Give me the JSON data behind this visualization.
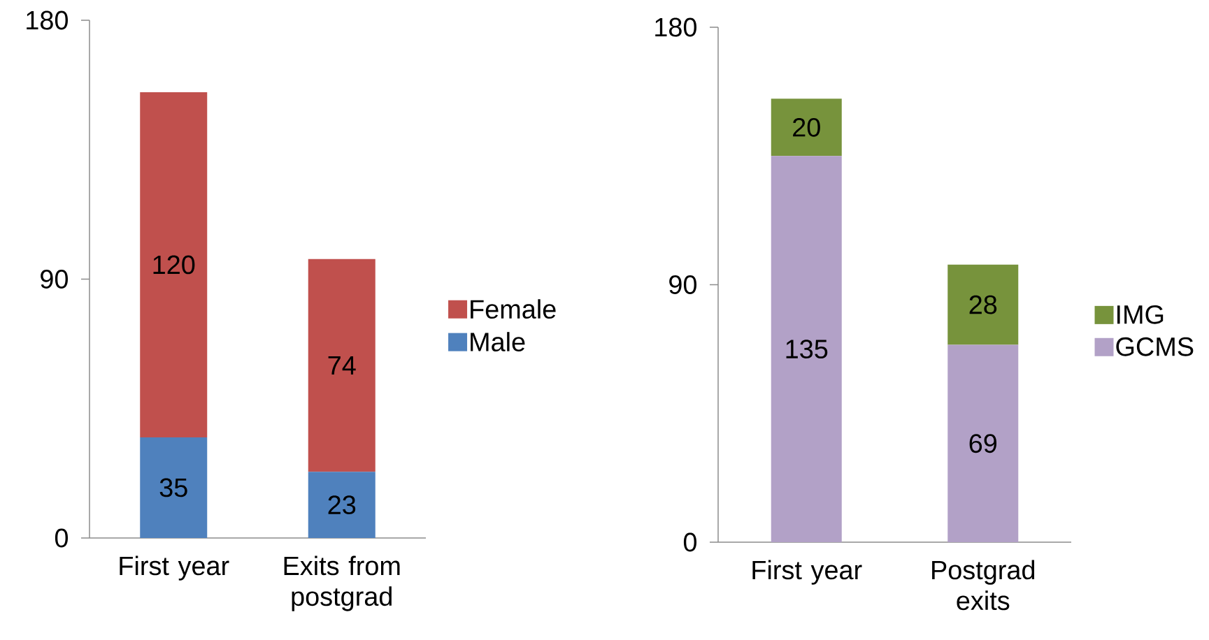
{
  "chart_data": [
    {
      "type": "bar",
      "stacked": true,
      "categories": [
        "First year",
        "Exits from postgrad"
      ],
      "series": [
        {
          "name": "Male",
          "color": "#4f81bd",
          "values": [
            35,
            23
          ]
        },
        {
          "name": "Female",
          "color": "#c0504d",
          "values": [
            120,
            74
          ]
        }
      ],
      "ylim": [
        0,
        180
      ],
      "yticks": [
        0,
        90,
        180
      ],
      "data_labels": true,
      "legend": "right",
      "grid": false
    },
    {
      "type": "bar",
      "stacked": true,
      "categories": [
        "First year",
        "Postgrad exits"
      ],
      "series": [
        {
          "name": "GCMS",
          "color": "#b2a1c7",
          "values": [
            135,
            69
          ]
        },
        {
          "name": "IMG",
          "color": "#77933c",
          "values": [
            20,
            28
          ]
        }
      ],
      "ylim": [
        0,
        180
      ],
      "yticks": [
        0,
        90,
        180
      ],
      "data_labels": true,
      "legend": "right",
      "grid": false
    }
  ]
}
